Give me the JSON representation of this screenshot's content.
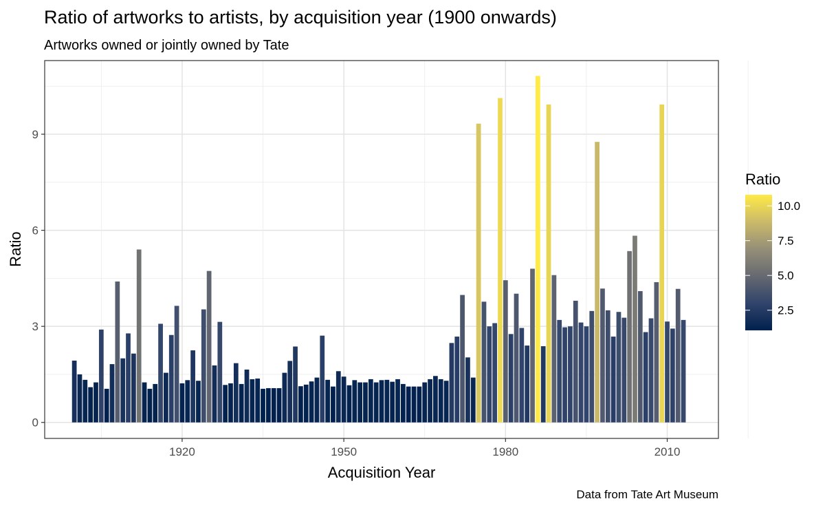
{
  "chart_data": {
    "type": "bar",
    "title": "Ratio of artworks to artists, by acquisition year (1900 onwards)",
    "subtitle": "Artworks owned or jointly owned by Tate",
    "xlabel": "Acquisition Year",
    "ylabel": "Ratio",
    "caption": "Data from Tate Art Museum",
    "xlim": [
      1894.5,
      2019.5
    ],
    "ylim": [
      -0.5,
      11.3
    ],
    "x_ticks": [
      {
        "value": 1920,
        "label": "1920"
      },
      {
        "value": 1950,
        "label": "1950"
      },
      {
        "value": 1980,
        "label": "1980"
      },
      {
        "value": 2010,
        "label": "2010"
      }
    ],
    "y_ticks": [
      {
        "value": 0,
        "label": "0"
      },
      {
        "value": 3,
        "label": "3"
      },
      {
        "value": 6,
        "label": "6"
      },
      {
        "value": 9,
        "label": "9"
      }
    ],
    "grid": true,
    "legend": {
      "title": "Ratio",
      "position": "right",
      "type": "colorbar",
      "range": [
        1.05,
        10.8
      ],
      "ticks": [
        {
          "value": 2.5,
          "label": "2.5"
        },
        {
          "value": 5.0,
          "label": "5.0"
        },
        {
          "value": 7.5,
          "label": "7.5"
        },
        {
          "value": 10.0,
          "label": "10.0"
        }
      ],
      "colors": [
        "#00204d",
        "#31446b",
        "#666970",
        "#958f78",
        "#cbba69",
        "#ffea46"
      ]
    },
    "x": [
      1900,
      1901,
      1902,
      1903,
      1904,
      1905,
      1906,
      1907,
      1908,
      1909,
      1910,
      1911,
      1912,
      1913,
      1914,
      1915,
      1916,
      1917,
      1918,
      1919,
      1920,
      1921,
      1922,
      1923,
      1924,
      1925,
      1926,
      1927,
      1928,
      1929,
      1930,
      1931,
      1932,
      1933,
      1934,
      1935,
      1936,
      1937,
      1938,
      1939,
      1940,
      1941,
      1942,
      1943,
      1944,
      1945,
      1946,
      1947,
      1948,
      1949,
      1950,
      1951,
      1952,
      1953,
      1954,
      1955,
      1956,
      1957,
      1958,
      1959,
      1960,
      1961,
      1962,
      1963,
      1964,
      1965,
      1966,
      1967,
      1968,
      1969,
      1970,
      1971,
      1972,
      1973,
      1974,
      1975,
      1976,
      1977,
      1978,
      1979,
      1980,
      1981,
      1982,
      1983,
      1984,
      1985,
      1986,
      1987,
      1988,
      1989,
      1990,
      1991,
      1992,
      1993,
      1994,
      1995,
      1996,
      1997,
      1998,
      1999,
      2000,
      2001,
      2002,
      2003,
      2004,
      2005,
      2006,
      2007,
      2008,
      2009,
      2010,
      2011,
      2012,
      2013
    ],
    "values": [
      1.93,
      1.5,
      1.33,
      1.1,
      1.25,
      2.9,
      1.05,
      1.82,
      4.4,
      2.0,
      2.78,
      2.15,
      5.4,
      1.25,
      1.05,
      1.2,
      3.08,
      1.55,
      2.73,
      3.64,
      1.22,
      1.32,
      2.25,
      1.3,
      3.53,
      4.73,
      1.78,
      3.14,
      1.17,
      1.22,
      1.85,
      1.2,
      1.65,
      1.35,
      1.37,
      1.05,
      1.07,
      1.07,
      1.07,
      1.55,
      1.92,
      2.37,
      1.13,
      1.18,
      1.28,
      1.4,
      2.71,
      1.33,
      1.12,
      1.6,
      1.43,
      1.16,
      1.32,
      1.25,
      1.25,
      1.35,
      1.25,
      1.32,
      1.33,
      1.27,
      1.35,
      1.2,
      1.12,
      1.12,
      1.12,
      1.25,
      1.35,
      1.45,
      1.35,
      1.3,
      2.48,
      2.68,
      3.98,
      2.03,
      1.4,
      9.33,
      3.77,
      3.0,
      3.1,
      10.13,
      4.44,
      2.76,
      4.02,
      2.95,
      2.4,
      4.8,
      10.82,
      2.38,
      9.93,
      4.6,
      3.2,
      2.97,
      3.0,
      3.8,
      3.12,
      3.0,
      3.48,
      8.76,
      4.18,
      3.5,
      2.68,
      3.45,
      3.27,
      5.35,
      5.83,
      4.1,
      2.82,
      3.25,
      4.38,
      9.93,
      3.15,
      2.93,
      4.17,
      3.2
    ]
  }
}
